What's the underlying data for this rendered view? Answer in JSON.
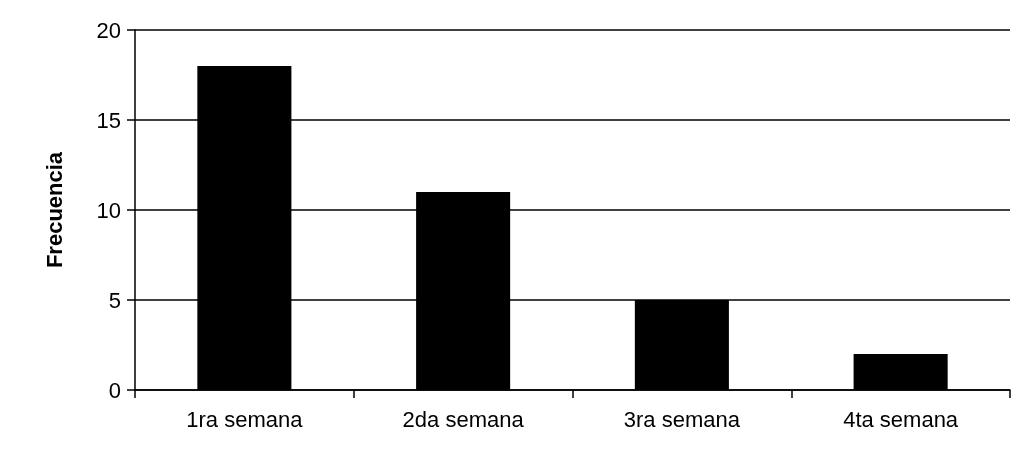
{
  "chart_data": {
    "type": "bar",
    "ylabel": "Frecuencia",
    "categories": [
      "1ra semana",
      "2da semana",
      "3ra semana",
      "4ta semana"
    ],
    "values": [
      18,
      11,
      5,
      2
    ],
    "color": "#000000",
    "ylim": [
      0,
      20
    ],
    "yticks": [
      0,
      5,
      10,
      15,
      20
    ],
    "grid": "y"
  }
}
